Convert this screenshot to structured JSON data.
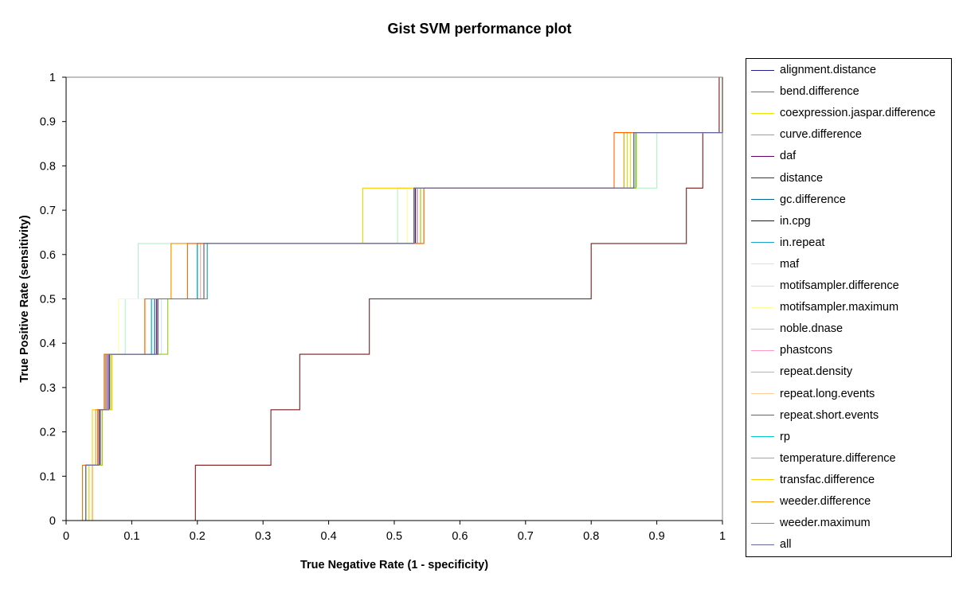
{
  "chart_data": {
    "type": "line",
    "title": "Gist SVM performance plot",
    "xlabel": "True Negative Rate (1 - specificity)",
    "ylabel": "True Positive Rate (sensitivity)",
    "xlim": [
      0,
      1
    ],
    "ylim": [
      0,
      1
    ],
    "xticks": [
      "0",
      "0.1",
      "0.2",
      "0.3",
      "0.4",
      "0.5",
      "0.6",
      "0.7",
      "0.8",
      "0.9",
      "1"
    ],
    "yticks": [
      "0",
      "0.1",
      "0.2",
      "0.3",
      "0.4",
      "0.5",
      "0.6",
      "0.7",
      "0.8",
      "0.9",
      "1"
    ],
    "grid": false,
    "legend_position": "right",
    "series": [
      {
        "name": "alignment.distance",
        "color": "#1f1f8f",
        "fpr": [
          0.03,
          0.05,
          0.065,
          0.135,
          0.2,
          0.53,
          0.865,
          1.0
        ]
      },
      {
        "name": "bend.difference",
        "color": "#cc33cc",
        "fpr": [
          0.03,
          0.05,
          0.063,
          0.14,
          0.21,
          0.535,
          0.865,
          1.0
        ]
      },
      {
        "name": "coexpression.jaspar.difference",
        "color": "#e8e800",
        "fpr": [
          0.035,
          0.055,
          0.068,
          0.145,
          0.215,
          0.54,
          0.86,
          1.0
        ]
      },
      {
        "name": "curve.difference",
        "color": "#33cccc",
        "fpr": [
          0.03,
          0.05,
          0.06,
          0.13,
          0.205,
          0.53,
          0.87,
          1.0
        ]
      },
      {
        "name": "daf",
        "color": "#660066",
        "fpr": [
          0.03,
          0.05,
          0.065,
          0.14,
          0.2,
          0.535,
          0.87,
          1.0
        ]
      },
      {
        "name": "distance",
        "color": "#7a1a1a",
        "fpr": [
          0.197,
          0.312,
          0.356,
          0.462,
          0.8,
          0.945,
          0.97,
          0.995
        ]
      },
      {
        "name": "gc.difference",
        "color": "#006699",
        "fpr": [
          0.03,
          0.05,
          0.06,
          0.13,
          0.2,
          0.53,
          0.868,
          1.0
        ]
      },
      {
        "name": "in.cpg",
        "color": "#4a0033",
        "fpr": [
          0.03,
          0.052,
          0.066,
          0.138,
          0.205,
          0.532,
          0.87,
          1.0
        ]
      },
      {
        "name": "in.repeat",
        "color": "#1aa3cc",
        "fpr": [
          0.03,
          0.05,
          0.062,
          0.135,
          0.215,
          0.53,
          0.87,
          1.0
        ]
      },
      {
        "name": "maf",
        "color": "#cce6ff",
        "fpr": [
          0.035,
          0.055,
          0.07,
          0.145,
          0.21,
          0.53,
          0.87,
          1.0
        ]
      },
      {
        "name": "motifsampler.difference",
        "color": "#b3f0c8",
        "fpr": [
          0.03,
          0.045,
          0.06,
          0.09,
          0.11,
          0.505,
          0.9,
          1.0
        ]
      },
      {
        "name": "motifsampler.maximum",
        "color": "#ffff99",
        "fpr": [
          0.035,
          0.05,
          0.065,
          0.08,
          0.16,
          0.52,
          0.87,
          1.0
        ]
      },
      {
        "name": "noble.dnase",
        "color": "#99ccff",
        "fpr": [
          0.03,
          0.05,
          0.062,
          0.135,
          0.2,
          0.53,
          0.865,
          1.0
        ]
      },
      {
        "name": "phastcons",
        "color": "#ff99cc",
        "fpr": [
          0.03,
          0.05,
          0.063,
          0.14,
          0.205,
          0.535,
          0.865,
          1.0
        ]
      },
      {
        "name": "repeat.density",
        "color": "#cc99ff",
        "fpr": [
          0.03,
          0.05,
          0.064,
          0.14,
          0.205,
          0.53,
          0.865,
          1.0
        ]
      },
      {
        "name": "repeat.long.events",
        "color": "#ffcc99",
        "fpr": [
          0.03,
          0.05,
          0.065,
          0.14,
          0.205,
          0.53,
          0.865,
          1.0
        ]
      },
      {
        "name": "repeat.short.events",
        "color": "#3366cc",
        "fpr": [
          0.03,
          0.05,
          0.062,
          0.135,
          0.2,
          0.53,
          0.865,
          1.0
        ]
      },
      {
        "name": "rp",
        "color": "#00cccc",
        "fpr": [
          0.03,
          0.05,
          0.06,
          0.13,
          0.2,
          0.53,
          0.868,
          1.0
        ]
      },
      {
        "name": "temperature.difference",
        "color": "#99cc00",
        "fpr": [
          0.03,
          0.055,
          0.068,
          0.155,
          0.21,
          0.54,
          0.868,
          1.0
        ]
      },
      {
        "name": "transfac.difference",
        "color": "#ffcc00",
        "fpr": [
          0.035,
          0.04,
          0.07,
          0.12,
          0.16,
          0.452,
          0.855,
          1.0
        ]
      },
      {
        "name": "weeder.difference",
        "color": "#ff9900",
        "fpr": [
          0.04,
          0.045,
          0.06,
          0.12,
          0.16,
          0.545,
          0.85,
          1.0
        ]
      },
      {
        "name": "weeder.maximum",
        "color": "#ff6600",
        "fpr": [
          0.025,
          0.048,
          0.058,
          0.12,
          0.185,
          0.545,
          0.835,
          1.0
        ]
      },
      {
        "name": "all",
        "color": "#666699",
        "fpr": [
          0.03,
          0.05,
          0.065,
          0.14,
          0.21,
          0.53,
          0.865,
          1.0
        ]
      }
    ],
    "tpr_levels": [
      0.125,
      0.25,
      0.375,
      0.5,
      0.625,
      0.75,
      0.875,
      1.0
    ]
  }
}
